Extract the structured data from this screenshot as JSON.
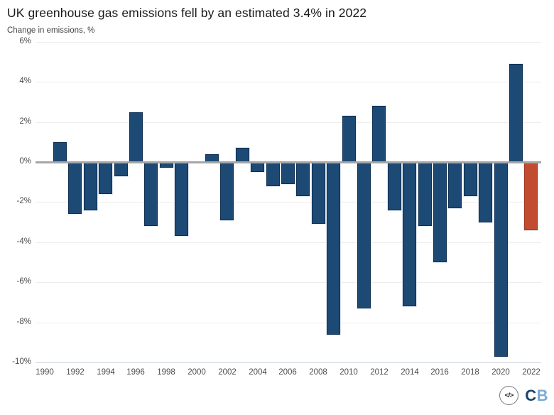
{
  "title": "UK greenhouse gas emissions fell by an estimated 3.4% in 2022",
  "subtitle": "Change in emissions, %",
  "footer": {
    "embed_symbol": "</>",
    "logo_first": "C",
    "logo_second": "B"
  },
  "colors": {
    "bar": "#1d4a75",
    "bar_border": "#102f52",
    "highlight": "#c24b30",
    "highlight_border": "#a03920",
    "zero_line": "#a6a6a6",
    "gridline": "#ededed",
    "axis_line": "#ccd4dc",
    "title_color": "#1a1a1a",
    "label_color": "#4a4a4a",
    "logo_dark_blue": "#1b4468",
    "logo_light_blue": "#7ca9d3"
  },
  "chart_data": {
    "type": "bar",
    "title": "UK greenhouse gas emissions fell by an estimated 3.4% in 2022",
    "subtitle": "Change in emissions, %",
    "ylabel": "Change in emissions, %",
    "xlabel": "",
    "grid": "horizontal",
    "legend": "none",
    "highlight_year": 2022,
    "ylim": [
      -10,
      6
    ],
    "yticks": [
      6,
      4,
      2,
      0,
      -2,
      -4,
      -6,
      -8,
      -10
    ],
    "ytick_labels": [
      "6%",
      "4%",
      "2%",
      "0%",
      "-2%",
      "-4%",
      "-6%",
      "-8%",
      "-10%"
    ],
    "x_tick_years": [
      1990,
      1992,
      1994,
      1996,
      1998,
      2000,
      2002,
      2004,
      2006,
      2008,
      2010,
      2012,
      2014,
      2016,
      2018,
      2020,
      2022
    ],
    "x": [
      1991,
      1992,
      1993,
      1994,
      1995,
      1996,
      1997,
      1998,
      1999,
      2000,
      2001,
      2002,
      2003,
      2004,
      2005,
      2006,
      2007,
      2008,
      2009,
      2010,
      2011,
      2012,
      2013,
      2014,
      2015,
      2016,
      2017,
      2018,
      2019,
      2020,
      2021,
      2022
    ],
    "values": [
      1.0,
      -2.6,
      -2.4,
      -1.6,
      -0.7,
      2.5,
      -3.2,
      -0.3,
      -3.7,
      0.0,
      0.4,
      -2.9,
      0.7,
      -0.5,
      -1.2,
      -1.1,
      -1.7,
      -3.1,
      -8.6,
      2.3,
      -7.3,
      2.8,
      -2.4,
      -7.2,
      -3.2,
      -5.0,
      -2.3,
      -1.7,
      -3.0,
      -9.7,
      4.9,
      -3.4
    ]
  }
}
